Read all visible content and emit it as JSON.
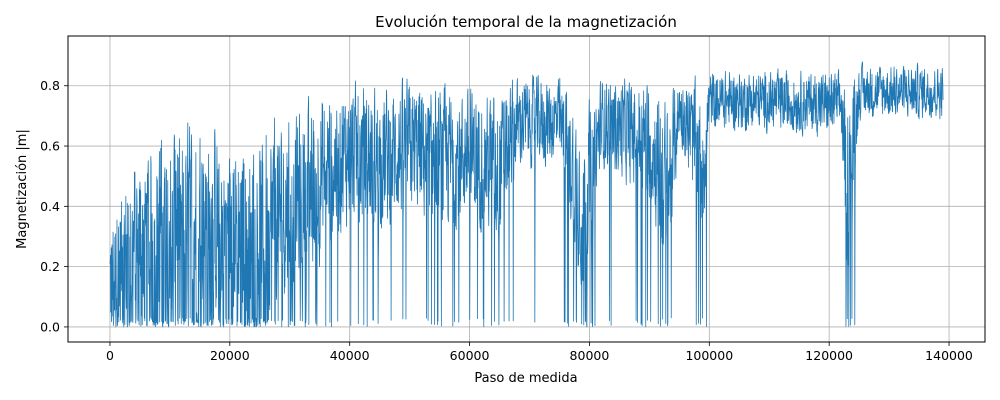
{
  "chart_data": {
    "type": "line",
    "title": "Evolución temporal de la magnetización",
    "xlabel": "Paso de medida",
    "ylabel": "Magnetización |m|",
    "xlim": [
      -7000,
      146000
    ],
    "ylim": [
      -0.05,
      0.965
    ],
    "xticks": [
      0,
      20000,
      40000,
      60000,
      80000,
      100000,
      120000,
      140000
    ],
    "xtick_labels": [
      "0",
      "20000",
      "40000",
      "60000",
      "80000",
      "100000",
      "120000",
      "140000"
    ],
    "yticks": [
      0.0,
      0.2,
      0.4,
      0.6,
      0.8
    ],
    "ytick_labels": [
      "0.0",
      "0.2",
      "0.4",
      "0.6",
      "0.8"
    ],
    "grid": true,
    "series": [
      {
        "color": "#1f77b4",
        "x_range": [
          0,
          139000
        ],
        "envelope": [
          {
            "x": 0,
            "mean": 0.15,
            "spread": 0.22,
            "floor_prob": 0.3
          },
          {
            "x": 5000,
            "mean": 0.3,
            "spread": 0.33,
            "floor_prob": 0.25
          },
          {
            "x": 10000,
            "mean": 0.35,
            "spread": 0.33,
            "floor_prob": 0.22
          },
          {
            "x": 15000,
            "mean": 0.38,
            "spread": 0.33,
            "floor_prob": 0.2
          },
          {
            "x": 20000,
            "mean": 0.32,
            "spread": 0.33,
            "floor_prob": 0.22
          },
          {
            "x": 25000,
            "mean": 0.35,
            "spread": 0.33,
            "floor_prob": 0.2
          },
          {
            "x": 30000,
            "mean": 0.4,
            "spread": 0.3,
            "floor_prob": 0.15
          },
          {
            "x": 35000,
            "mean": 0.5,
            "spread": 0.28,
            "floor_prob": 0.08
          },
          {
            "x": 40000,
            "mean": 0.58,
            "spread": 0.23,
            "floor_prob": 0.05
          },
          {
            "x": 45000,
            "mean": 0.55,
            "spread": 0.25,
            "floor_prob": 0.06
          },
          {
            "x": 50000,
            "mean": 0.6,
            "spread": 0.22,
            "floor_prob": 0.05
          },
          {
            "x": 55000,
            "mean": 0.55,
            "spread": 0.25,
            "floor_prob": 0.06
          },
          {
            "x": 60000,
            "mean": 0.58,
            "spread": 0.22,
            "floor_prob": 0.05
          },
          {
            "x": 65000,
            "mean": 0.52,
            "spread": 0.25,
            "floor_prob": 0.08
          },
          {
            "x": 68000,
            "mean": 0.68,
            "spread": 0.15,
            "floor_prob": 0.02
          },
          {
            "x": 75000,
            "mean": 0.68,
            "spread": 0.15,
            "floor_prob": 0.02
          },
          {
            "x": 79000,
            "mean": 0.4,
            "spread": 0.3,
            "floor_prob": 0.15
          },
          {
            "x": 82000,
            "mean": 0.68,
            "spread": 0.15,
            "floor_prob": 0.02
          },
          {
            "x": 90000,
            "mean": 0.62,
            "spread": 0.2,
            "floor_prob": 0.05
          },
          {
            "x": 93000,
            "mean": 0.45,
            "spread": 0.3,
            "floor_prob": 0.12
          },
          {
            "x": 95000,
            "mean": 0.73,
            "spread": 0.11,
            "floor_prob": 0.01
          },
          {
            "x": 99000,
            "mean": 0.55,
            "spread": 0.25,
            "floor_prob": 0.06
          },
          {
            "x": 100000,
            "mean": 0.75,
            "spread": 0.1,
            "floor_prob": 0.0
          },
          {
            "x": 110000,
            "mean": 0.75,
            "spread": 0.1,
            "floor_prob": 0.0
          },
          {
            "x": 122000,
            "mean": 0.74,
            "spread": 0.11,
            "floor_prob": 0.0
          },
          {
            "x": 123000,
            "mean": 0.45,
            "spread": 0.3,
            "floor_prob": 0.1
          },
          {
            "x": 125000,
            "mean": 0.78,
            "spread": 0.09,
            "floor_prob": 0.0
          },
          {
            "x": 139000,
            "mean": 0.78,
            "spread": 0.09,
            "floor_prob": 0.0
          }
        ]
      }
    ]
  }
}
